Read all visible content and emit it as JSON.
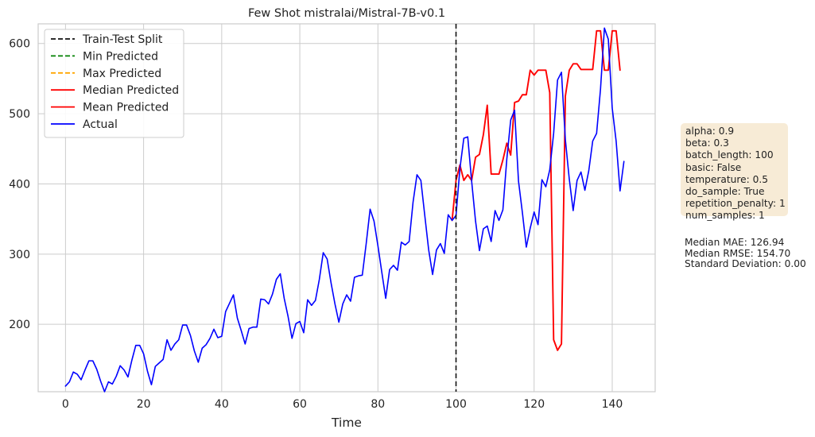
{
  "chart_data": {
    "type": "line",
    "title": "Few Shot mistralai/Mistral-7B-v0.1",
    "xlabel": "Time",
    "ylabel": "",
    "xlim": [
      -7,
      151
    ],
    "ylim": [
      104,
      628
    ],
    "xticks": [
      0,
      20,
      40,
      60,
      80,
      100,
      120,
      140
    ],
    "yticks": [
      200,
      300,
      400,
      500,
      600
    ],
    "grid": true,
    "legend_position": "top-left",
    "split_x": 100,
    "legend": [
      {
        "label": "Train-Test Split",
        "color": "#111111",
        "dashed": true
      },
      {
        "label": "Min Predicted",
        "color": "#008000",
        "dashed": true
      },
      {
        "label": "Max Predicted",
        "color": "#ffa500",
        "dashed": true
      },
      {
        "label": "Median Predicted",
        "color": "#ff0000",
        "dashed": false
      },
      {
        "label": "Mean Predicted",
        "color": "#ff0000",
        "dashed": false
      },
      {
        "label": "Actual",
        "color": "#0000ff",
        "dashed": false
      }
    ],
    "series": [
      {
        "name": "Actual",
        "color": "#0000ff",
        "x_start": 0,
        "values": [
          112,
          118,
          132,
          129,
          121,
          135,
          148,
          148,
          136,
          119,
          104,
          118,
          115,
          126,
          141,
          135,
          125,
          149,
          170,
          170,
          158,
          133,
          114,
          140,
          145,
          150,
          178,
          163,
          172,
          178,
          199,
          199,
          184,
          162,
          146,
          166,
          171,
          180,
          193,
          181,
          183,
          218,
          230,
          242,
          209,
          191,
          172,
          194,
          196,
          196,
          236,
          235,
          229,
          243,
          264,
          272,
          237,
          211,
          180,
          201,
          204,
          188,
          235,
          227,
          234,
          264,
          302,
          293,
          259,
          229,
          203,
          229,
          242,
          233,
          267,
          269,
          270,
          315,
          364,
          347,
          312,
          274,
          237,
          278,
          284,
          277,
          317,
          313,
          318,
          374,
          413,
          405,
          355,
          306,
          271,
          306,
          315,
          301,
          356,
          348,
          355,
          422,
          465,
          467,
          404,
          347,
          305,
          336,
          340,
          318,
          362,
          348,
          363,
          435,
          491,
          505,
          404,
          359,
          310,
          337,
          360,
          342,
          406,
          396,
          420,
          472,
          548,
          559,
          463,
          407,
          362,
          405,
          417,
          391,
          419,
          461,
          472,
          535,
          622,
          606,
          508,
          461,
          390,
          432
        ]
      },
      {
        "name": "Median Predicted",
        "color": "#ff0000",
        "x_start": 99,
        "values": [
          348,
          405,
          427,
          405,
          413,
          405,
          438,
          442,
          470,
          512,
          414,
          414,
          414,
          434,
          458,
          441,
          516,
          518,
          527,
          527,
          562,
          555,
          562,
          562,
          562,
          530,
          178,
          163,
          172,
          525,
          562,
          571,
          571,
          563,
          563,
          563,
          563,
          618,
          618,
          562,
          562,
          618,
          618,
          562
        ]
      }
    ]
  },
  "params": {
    "lines": [
      "alpha: 0.9",
      "beta: 0.3",
      "batch_length: 100",
      "basic: False",
      "temperature: 0.5",
      "do_sample: True",
      "repetition_penalty: 1",
      "num_samples: 1"
    ]
  },
  "metrics": {
    "lines": [
      "Median MAE: 126.94",
      "Median RMSE: 154.70",
      "Standard Deviation: 0.00"
    ]
  }
}
